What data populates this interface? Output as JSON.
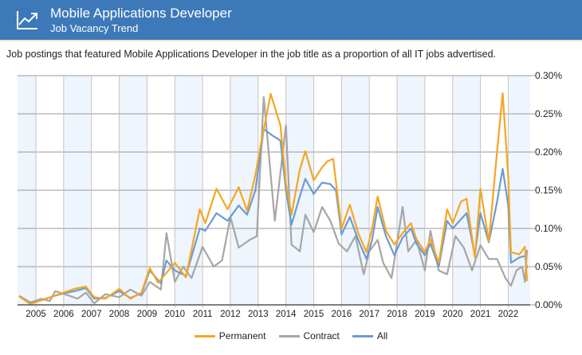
{
  "header": {
    "title": "Mobile Applications Developer",
    "subtitle": "Job Vacancy Trend",
    "icon": "trend-chart-icon",
    "color": "#3d79b8"
  },
  "description": "Job postings that featured Mobile Applications Developer in the job title as a proportion of all IT jobs advertised.",
  "chart_data": {
    "type": "line",
    "xlim": [
      2004.34,
      2022.68
    ],
    "ylim": [
      0,
      0.3
    ],
    "y_unit": "%",
    "y_ticks": [
      "0.00%",
      "0.05%",
      "0.10%",
      "0.15%",
      "0.20%",
      "0.25%",
      "0.30%"
    ],
    "y_tick_values": [
      0,
      0.05,
      0.1,
      0.15,
      0.2,
      0.25,
      0.3
    ],
    "x_ticks": [
      "2005",
      "2006",
      "2007",
      "2008",
      "2009",
      "2010",
      "2011",
      "2012",
      "2013",
      "2014",
      "2015",
      "2016",
      "2017",
      "2018",
      "2019",
      "2020",
      "2021",
      "2022"
    ],
    "grid": true,
    "alternating_year_bands": true,
    "legend_placement": "bottom",
    "series": [
      {
        "name": "Permanent",
        "color": "#f5a623",
        "x": [
          2004.4,
          2004.8,
          2005.2,
          2005.6,
          2006.0,
          2006.4,
          2006.8,
          2007.1,
          2007.5,
          2008.0,
          2008.4,
          2008.8,
          2009.1,
          2009.4,
          2009.7,
          2010.0,
          2010.4,
          2010.9,
          2011.1,
          2011.5,
          2011.9,
          2012.3,
          2012.6,
          2012.9,
          2013.1,
          2013.45,
          2013.8,
          2014.0,
          2014.2,
          2014.5,
          2014.7,
          2015.0,
          2015.3,
          2015.5,
          2015.7,
          2016.0,
          2016.3,
          2016.6,
          2016.9,
          2017.1,
          2017.3,
          2017.6,
          2017.9,
          2018.2,
          2018.5,
          2018.7,
          2019.0,
          2019.2,
          2019.5,
          2019.8,
          2020.0,
          2020.3,
          2020.5,
          2020.8,
          2021.0,
          2021.3,
          2021.6,
          2021.8,
          2022.0,
          2022.1,
          2022.4,
          2022.6,
          2022.68
        ],
        "values": [
          0.011,
          0.001,
          0.006,
          0.011,
          0.016,
          0.021,
          0.024,
          0.01,
          0.008,
          0.021,
          0.008,
          0.016,
          0.048,
          0.029,
          0.042,
          0.055,
          0.036,
          0.125,
          0.107,
          0.152,
          0.125,
          0.154,
          0.123,
          0.17,
          0.211,
          0.276,
          0.235,
          0.159,
          0.118,
          0.177,
          0.201,
          0.163,
          0.18,
          0.188,
          0.191,
          0.1,
          0.131,
          0.094,
          0.069,
          0.1,
          0.142,
          0.097,
          0.079,
          0.094,
          0.107,
          0.086,
          0.069,
          0.086,
          0.055,
          0.125,
          0.107,
          0.135,
          0.139,
          0.062,
          0.152,
          0.083,
          0.201,
          0.277,
          0.167,
          0.069,
          0.066,
          0.076,
          0.031
        ]
      },
      {
        "name": "Contract",
        "color": "#a6a6a6",
        "x": [
          2004.4,
          2004.8,
          2005.2,
          2005.5,
          2005.7,
          2006.2,
          2006.5,
          2006.8,
          2007.1,
          2007.5,
          2008.0,
          2008.4,
          2008.8,
          2009.1,
          2009.5,
          2009.7,
          2010.0,
          2010.3,
          2010.6,
          2011.0,
          2011.4,
          2011.7,
          2012.0,
          2012.3,
          2012.7,
          2012.95,
          2013.2,
          2013.6,
          2014.0,
          2014.2,
          2014.5,
          2014.7,
          2015.0,
          2015.3,
          2015.6,
          2015.9,
          2016.2,
          2016.5,
          2016.8,
          2017.0,
          2017.3,
          2017.5,
          2017.8,
          2018.2,
          2018.4,
          2018.7,
          2019.0,
          2019.2,
          2019.5,
          2019.8,
          2020.1,
          2020.4,
          2020.7,
          2021.0,
          2021.3,
          2021.6,
          2021.9,
          2022.1,
          2022.3,
          2022.5,
          2022.6,
          2022.68
        ],
        "values": [
          0.012,
          0.003,
          0.008,
          0.005,
          0.018,
          0.012,
          0.008,
          0.016,
          0.002,
          0.014,
          0.01,
          0.02,
          0.012,
          0.03,
          0.02,
          0.094,
          0.03,
          0.05,
          0.035,
          0.076,
          0.05,
          0.058,
          0.115,
          0.075,
          0.085,
          0.09,
          0.272,
          0.11,
          0.235,
          0.079,
          0.07,
          0.118,
          0.095,
          0.128,
          0.11,
          0.08,
          0.07,
          0.09,
          0.04,
          0.07,
          0.085,
          0.055,
          0.035,
          0.128,
          0.07,
          0.085,
          0.045,
          0.097,
          0.045,
          0.04,
          0.09,
          0.075,
          0.045,
          0.078,
          0.06,
          0.06,
          0.035,
          0.025,
          0.045,
          0.05,
          0.03,
          0.072
        ]
      },
      {
        "name": "All",
        "color": "#6b9bd2",
        "x": [
          2004.4,
          2004.8,
          2005.2,
          2005.6,
          2006.0,
          2006.4,
          2006.8,
          2007.1,
          2007.5,
          2008.0,
          2008.4,
          2008.8,
          2009.1,
          2009.5,
          2009.7,
          2010.0,
          2010.4,
          2010.9,
          2011.1,
          2011.5,
          2011.9,
          2012.3,
          2012.6,
          2012.9,
          2013.2,
          2013.5,
          2013.8,
          2014.0,
          2014.2,
          2014.5,
          2014.7,
          2015.0,
          2015.3,
          2015.6,
          2015.8,
          2016.0,
          2016.3,
          2016.6,
          2016.9,
          2017.1,
          2017.3,
          2017.6,
          2017.9,
          2018.2,
          2018.5,
          2018.7,
          2019.0,
          2019.2,
          2019.5,
          2019.8,
          2020.0,
          2020.3,
          2020.5,
          2020.8,
          2021.0,
          2021.3,
          2021.6,
          2021.8,
          2022.0,
          2022.1,
          2022.4,
          2022.6,
          2022.68
        ],
        "values": [
          0.011,
          0.002,
          0.006,
          0.011,
          0.015,
          0.018,
          0.022,
          0.008,
          0.009,
          0.018,
          0.009,
          0.015,
          0.045,
          0.028,
          0.058,
          0.045,
          0.038,
          0.1,
          0.097,
          0.12,
          0.11,
          0.13,
          0.118,
          0.15,
          0.23,
          0.222,
          0.215,
          0.15,
          0.105,
          0.142,
          0.165,
          0.145,
          0.16,
          0.158,
          0.15,
          0.092,
          0.115,
          0.085,
          0.06,
          0.085,
          0.128,
          0.09,
          0.065,
          0.088,
          0.1,
          0.08,
          0.065,
          0.08,
          0.05,
          0.11,
          0.1,
          0.112,
          0.12,
          0.065,
          0.12,
          0.082,
          0.135,
          0.178,
          0.13,
          0.055,
          0.062,
          0.064,
          0.048
        ]
      }
    ]
  }
}
